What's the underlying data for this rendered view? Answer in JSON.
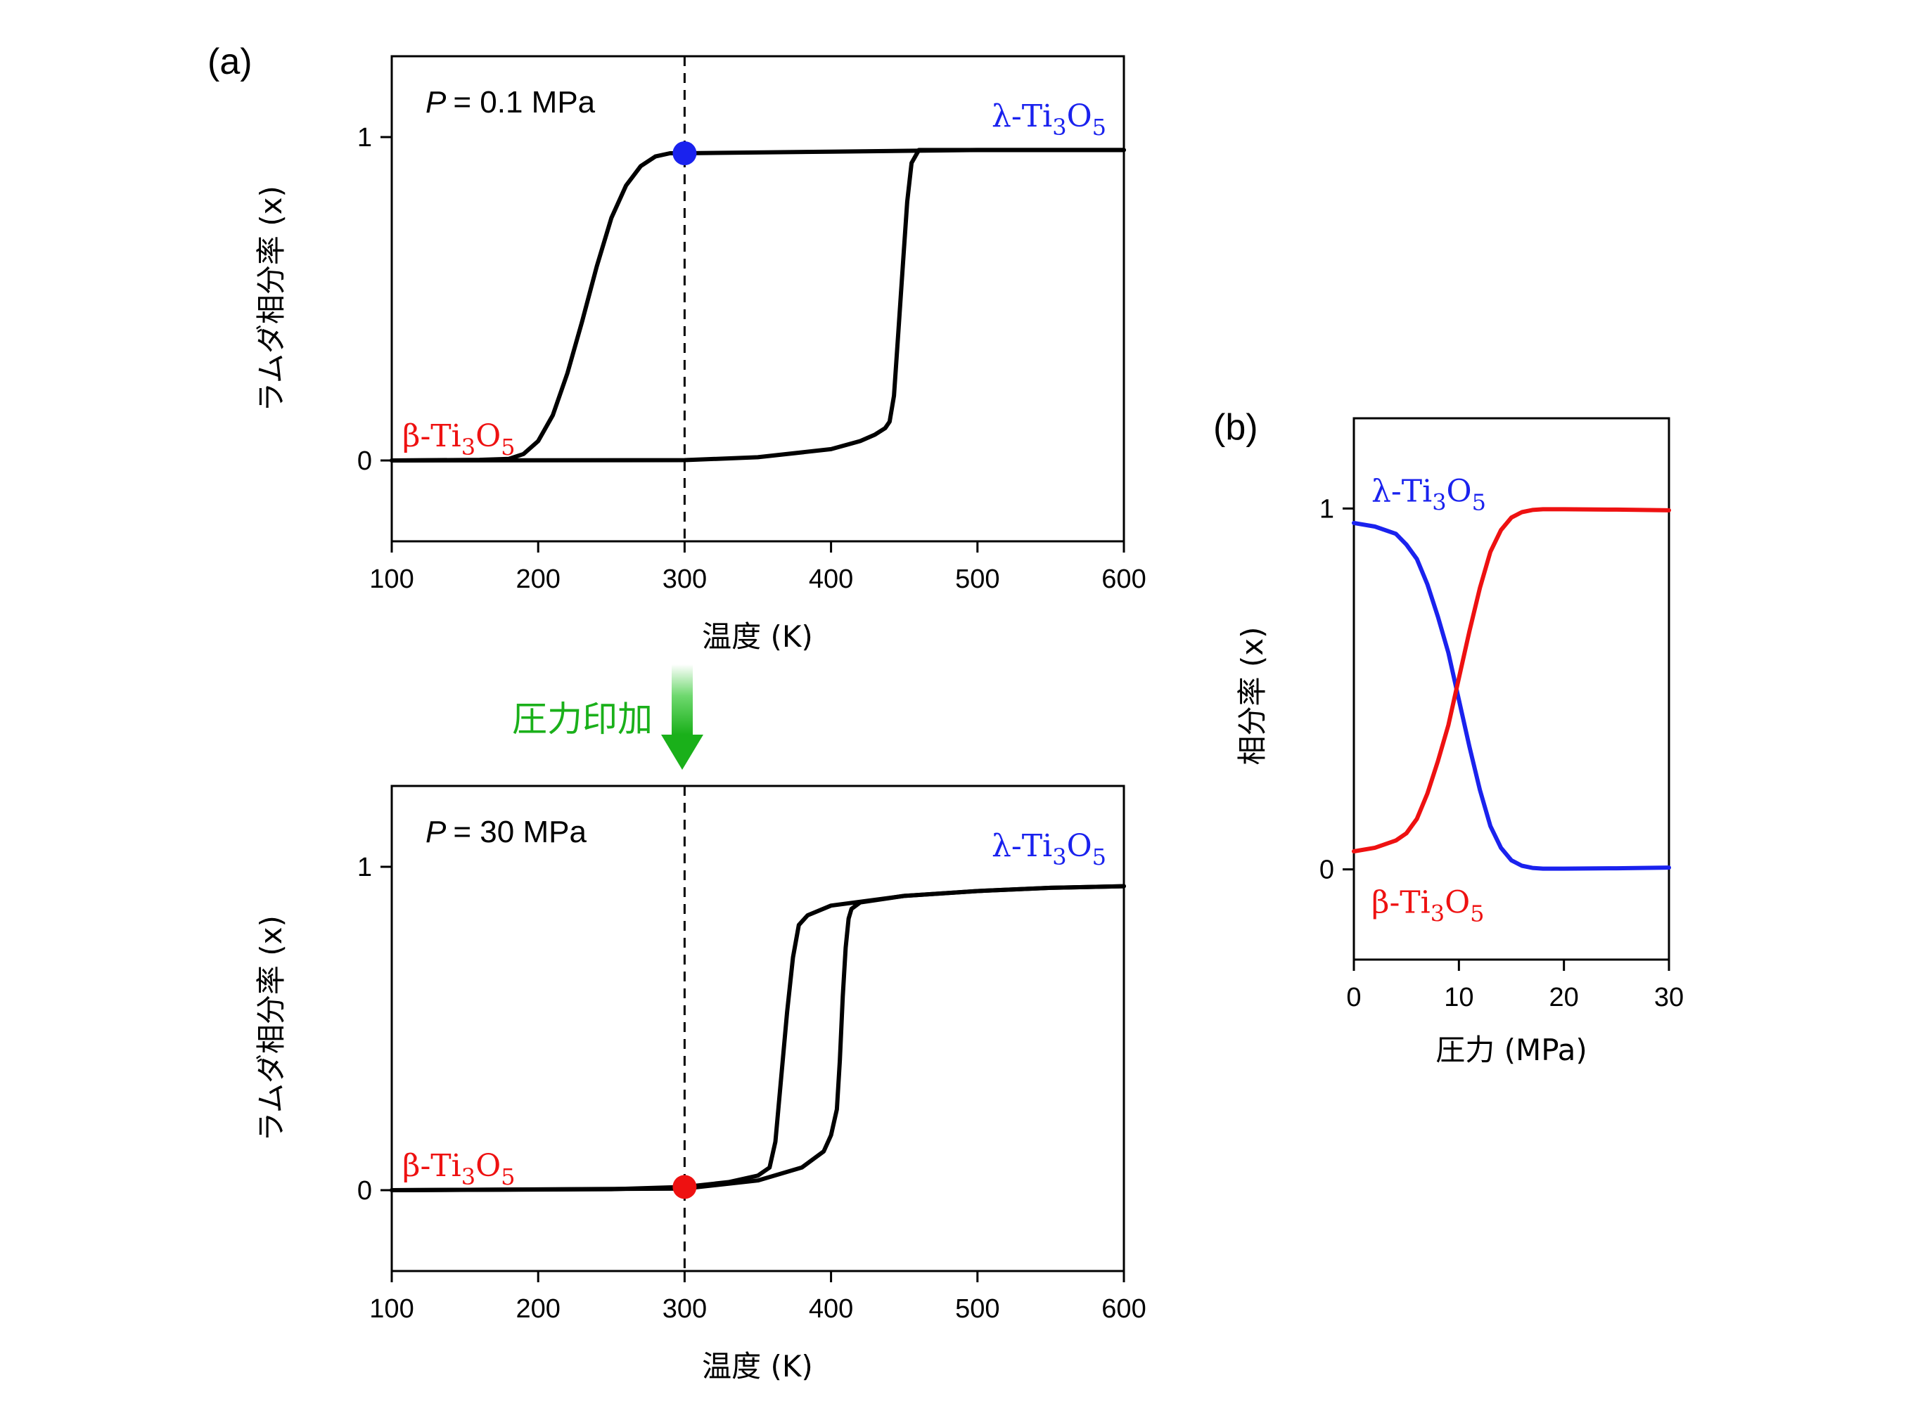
{
  "figure": {
    "panel_a_label": "(a)",
    "panel_b_label": "(b)",
    "arrow_label": "圧力印加",
    "arrow_color": "#22bb22"
  },
  "colors": {
    "lambda": "#1a22ee",
    "beta": "#ee1111",
    "curve": "#000000"
  },
  "chart_data": [
    {
      "id": "a-top",
      "type": "line",
      "annotation_P": "P",
      "annotation_value": "= 0.1 MPa",
      "xlabel": "温度 (K)",
      "ylabel": "ラムダ相分率 (x)",
      "xlim": [
        100,
        600
      ],
      "ylim": [
        -0.25,
        1.25
      ],
      "xticks": [
        "100",
        "200",
        "300",
        "400",
        "500",
        "600"
      ],
      "yticks": [
        "0",
        "1"
      ],
      "lambda_label_main": "λ-Ti",
      "lambda_sub1": "3",
      "lambda_mid": "O",
      "lambda_sub2": "5",
      "beta_label_main": "β-Ti",
      "beta_sub1": "3",
      "beta_mid": "O",
      "beta_sub2": "5",
      "dashed_x": 300,
      "marker": {
        "x": 300,
        "y": 0.95,
        "color": "blue"
      },
      "series": [
        {
          "x": [
            100,
            160,
            180,
            190,
            200,
            210,
            220,
            230,
            240,
            250,
            260,
            270,
            280,
            290,
            300,
            400,
            500,
            600
          ],
          "y": [
            0,
            0.002,
            0.005,
            0.02,
            0.06,
            0.14,
            0.27,
            0.43,
            0.6,
            0.75,
            0.85,
            0.91,
            0.94,
            0.95,
            0.95,
            0.955,
            0.96,
            0.96
          ]
        },
        {
          "x": [
            100,
            300,
            350,
            400,
            420,
            430,
            437,
            440,
            443,
            446,
            449,
            452,
            455,
            460,
            500,
            600
          ],
          "y": [
            0,
            0.001,
            0.01,
            0.035,
            0.06,
            0.08,
            0.1,
            0.12,
            0.2,
            0.4,
            0.6,
            0.8,
            0.92,
            0.96,
            0.96,
            0.96
          ]
        }
      ]
    },
    {
      "id": "a-bottom",
      "type": "line",
      "annotation_P": "P",
      "annotation_value": "= 30 MPa",
      "xlabel": "温度 (K)",
      "ylabel": "ラムダ相分率 (x)",
      "xlim": [
        100,
        600
      ],
      "ylim": [
        -0.25,
        1.25
      ],
      "xticks": [
        "100",
        "200",
        "300",
        "400",
        "500",
        "600"
      ],
      "yticks": [
        "0",
        "1"
      ],
      "lambda_label_main": "λ-Ti",
      "lambda_sub1": "3",
      "lambda_mid": "O",
      "lambda_sub2": "5",
      "beta_label_main": "β-Ti",
      "beta_sub1": "3",
      "beta_mid": "O",
      "beta_sub2": "5",
      "dashed_x": 300,
      "marker": {
        "x": 300,
        "y": 0.01,
        "color": "red"
      },
      "series": [
        {
          "x": [
            100,
            250,
            300,
            330,
            350,
            358,
            362,
            366,
            370,
            374,
            378,
            384,
            400,
            450,
            500,
            550,
            600
          ],
          "y": [
            0,
            0.003,
            0.01,
            0.025,
            0.045,
            0.07,
            0.15,
            0.35,
            0.55,
            0.72,
            0.82,
            0.85,
            0.88,
            0.91,
            0.925,
            0.935,
            0.94
          ]
        },
        {
          "x": [
            100,
            300,
            350,
            380,
            395,
            400,
            404,
            406,
            408,
            410,
            412,
            414,
            420,
            450,
            500,
            550,
            600
          ],
          "y": [
            0,
            0.005,
            0.03,
            0.07,
            0.12,
            0.17,
            0.25,
            0.4,
            0.6,
            0.75,
            0.84,
            0.87,
            0.89,
            0.91,
            0.925,
            0.935,
            0.94
          ]
        }
      ]
    },
    {
      "id": "b",
      "type": "line",
      "xlabel": "圧力 (MPa)",
      "ylabel": "相分率 (x)",
      "xlim": [
        0,
        30
      ],
      "ylim": [
        -0.25,
        1.25
      ],
      "xticks": [
        "0",
        "10",
        "20",
        "30"
      ],
      "yticks": [
        "0",
        "1"
      ],
      "lambda_label_main": "λ-Ti",
      "lambda_sub1": "3",
      "lambda_mid": "O",
      "lambda_sub2": "5",
      "beta_label_main": "β-Ti",
      "beta_sub1": "3",
      "beta_mid": "O",
      "beta_sub2": "5",
      "series": [
        {
          "color": "blue",
          "x": [
            0,
            2,
            4,
            5,
            6,
            7,
            8,
            9,
            10,
            11,
            12,
            13,
            14,
            15,
            16,
            17,
            18,
            20,
            25,
            30
          ],
          "y": [
            0.96,
            0.95,
            0.93,
            0.9,
            0.86,
            0.79,
            0.7,
            0.6,
            0.47,
            0.34,
            0.22,
            0.12,
            0.06,
            0.025,
            0.01,
            0.004,
            0.002,
            0.002,
            0.003,
            0.005
          ]
        },
        {
          "color": "red",
          "x": [
            0,
            2,
            4,
            5,
            6,
            7,
            8,
            9,
            10,
            11,
            12,
            13,
            14,
            15,
            16,
            17,
            18,
            20,
            25,
            30
          ],
          "y": [
            0.05,
            0.06,
            0.08,
            0.1,
            0.14,
            0.21,
            0.3,
            0.4,
            0.53,
            0.66,
            0.78,
            0.88,
            0.94,
            0.975,
            0.99,
            0.996,
            0.998,
            0.998,
            0.997,
            0.995
          ]
        }
      ]
    }
  ]
}
